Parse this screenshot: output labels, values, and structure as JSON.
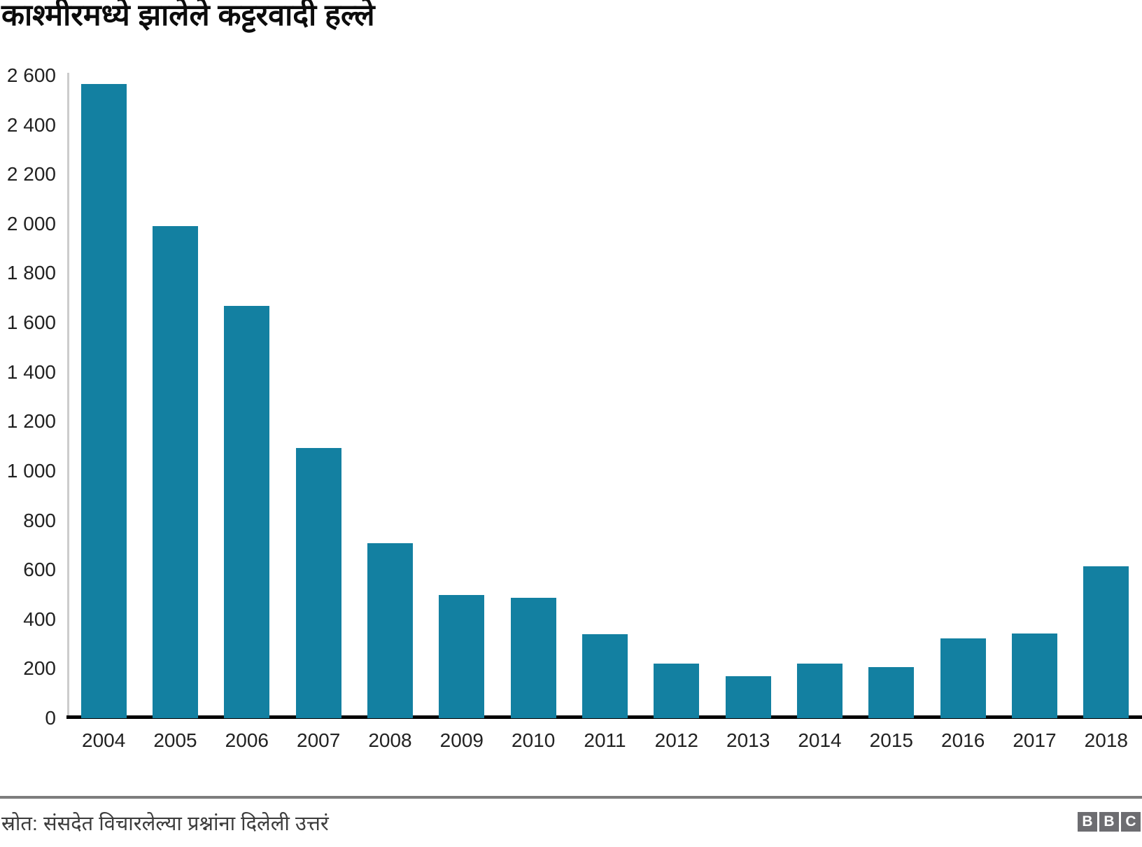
{
  "title": "काश्मीरमध्ये झालेले कट्टरवादी हल्ले",
  "footer": {
    "source": "स्रोत: संसदेत विचारलेल्या प्रश्नांना दिलेली उत्तरं",
    "logo_letters": [
      "B",
      "B",
      "C"
    ]
  },
  "colors": {
    "bar": "#1380A1",
    "baseline": "#000000",
    "y_axis_line": "#cccccc",
    "divider": "#7d7d7d",
    "logo_box": "#6d6d71",
    "tick_text": "#222222",
    "title_text": "#0c0c0c",
    "source_text": "#3d3d3d"
  },
  "chart_data": {
    "type": "bar",
    "title": "काश्मीरमध्ये झालेले कट्टरवादी हल्ले",
    "categories": [
      "2004",
      "2005",
      "2006",
      "2007",
      "2008",
      "2009",
      "2010",
      "2011",
      "2012",
      "2013",
      "2014",
      "2015",
      "2016",
      "2017",
      "2018"
    ],
    "values": [
      2565,
      1990,
      1667,
      1092,
      708,
      499,
      488,
      340,
      220,
      170,
      222,
      208,
      322,
      342,
      614
    ],
    "xlabel": "",
    "ylabel": "",
    "ylim": [
      0,
      2600
    ],
    "ytick_step": 200,
    "ytick_labels": [
      "0",
      "200",
      "400",
      "600",
      "800",
      "1 000",
      "1 200",
      "1 400",
      "1 600",
      "1 800",
      "2 000",
      "2 200",
      "2 400",
      "2 600"
    ],
    "grid": false,
    "legend": null,
    "bar_color": "#1380A1",
    "source": "स्रोत: संसदेत विचारलेल्या प्रश्नांना दिलेली उत्तरं"
  }
}
